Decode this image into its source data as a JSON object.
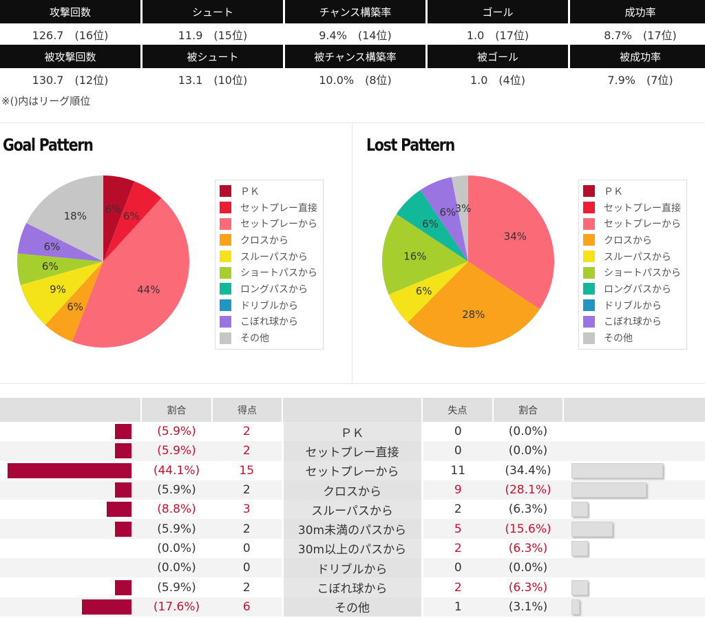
{
  "stats": {
    "rows": [
      {
        "headers": [
          "攻撃回数",
          "シュート",
          "チャンス構築率",
          "ゴール",
          "成功率"
        ],
        "values": [
          "126.7　(16位)",
          "11.9　(15位)",
          "9.4%　(14位)",
          "1.0　(17位)",
          "8.7%　(17位)"
        ]
      },
      {
        "headers": [
          "被攻撃回数",
          "被シュート",
          "被チャンス構築率",
          "被ゴール",
          "被成功率"
        ],
        "values": [
          "130.7　(12位)",
          "13.1　(10位)",
          "10.0%　(8位)",
          "1.0　(4位)",
          "7.9%　(7位)"
        ]
      }
    ],
    "note": "※()内はリーグ順位"
  },
  "chart_data": [
    {
      "type": "pie",
      "title": "Goal Pattern",
      "labels": [
        "ＰＫ",
        "セットプレー直接",
        "セットプレーから",
        "クロスから",
        "スルーパスから",
        "ショートパスから",
        "ロングパスから",
        "ドリブルから",
        "こぼれ球から",
        "その他"
      ],
      "values": [
        5.9,
        5.9,
        44.1,
        5.9,
        8.8,
        5.9,
        0,
        0,
        5.9,
        17.6
      ],
      "slice_labels": [
        "6%",
        "6%",
        "44%",
        "6%",
        "9%",
        "6%",
        "",
        "",
        "6%",
        "18%"
      ],
      "colors": [
        "#b80d2a",
        "#ee1d36",
        "#fb6a77",
        "#fba21d",
        "#f5e31a",
        "#a6ce2c",
        "#12b89a",
        "#2196c4",
        "#9a74e0",
        "#c6c6c6"
      ],
      "legend": "right"
    },
    {
      "type": "pie",
      "title": "Lost Pattern",
      "labels": [
        "ＰＫ",
        "セットプレー直接",
        "セットプレーから",
        "クロスから",
        "スルーパスから",
        "ショートパスから",
        "ロングパスから",
        "ドリブルから",
        "こぼれ球から",
        "その他"
      ],
      "values": [
        0,
        0,
        34.4,
        28.1,
        6.3,
        15.6,
        6.3,
        0,
        6.3,
        3.1
      ],
      "slice_labels": [
        "",
        "",
        "34%",
        "28%",
        "6%",
        "16%",
        "6%",
        "",
        "6%",
        "3%"
      ],
      "colors": [
        "#b80d2a",
        "#ee1d36",
        "#fb6a77",
        "#fba21d",
        "#f5e31a",
        "#a6ce2c",
        "#12b89a",
        "#2196c4",
        "#9a74e0",
        "#c6c6c6"
      ],
      "legend": "right"
    },
    {
      "type": "table",
      "headers": [
        "",
        "割合",
        "得点",
        "",
        "失点",
        "割合",
        ""
      ],
      "rows": [
        {
          "category": "ＰＫ",
          "goals": 2,
          "goal_pct": "(5.9%)",
          "goal_red": true,
          "lost": 0,
          "lost_pct": "(0.0%)",
          "lost_red": false,
          "goal_val": 5.9,
          "lost_val": 0
        },
        {
          "category": "セットプレー直接",
          "goals": 2,
          "goal_pct": "(5.9%)",
          "goal_red": true,
          "lost": 0,
          "lost_pct": "(0.0%)",
          "lost_red": false,
          "goal_val": 5.9,
          "lost_val": 0
        },
        {
          "category": "セットプレーから",
          "goals": 15,
          "goal_pct": "(44.1%)",
          "goal_red": true,
          "lost": 11,
          "lost_pct": "(34.4%)",
          "lost_red": false,
          "goal_val": 44.1,
          "lost_val": 34.4
        },
        {
          "category": "クロスから",
          "goals": 2,
          "goal_pct": "(5.9%)",
          "goal_red": false,
          "lost": 9,
          "lost_pct": "(28.1%)",
          "lost_red": true,
          "goal_val": 5.9,
          "lost_val": 28.1
        },
        {
          "category": "スルーパスから",
          "goals": 3,
          "goal_pct": "(8.8%)",
          "goal_red": true,
          "lost": 2,
          "lost_pct": "(6.3%)",
          "lost_red": false,
          "goal_val": 8.8,
          "lost_val": 6.3
        },
        {
          "category": "30m未満のパスから",
          "goals": 2,
          "goal_pct": "(5.9%)",
          "goal_red": false,
          "lost": 5,
          "lost_pct": "(15.6%)",
          "lost_red": true,
          "goal_val": 5.9,
          "lost_val": 15.6
        },
        {
          "category": "30m以上のパスから",
          "goals": 0,
          "goal_pct": "(0.0%)",
          "goal_red": false,
          "lost": 2,
          "lost_pct": "(6.3%)",
          "lost_red": true,
          "goal_val": 0,
          "lost_val": 6.3
        },
        {
          "category": "ドリブルから",
          "goals": 0,
          "goal_pct": "(0.0%)",
          "goal_red": false,
          "lost": 0,
          "lost_pct": "(0.0%)",
          "lost_red": false,
          "goal_val": 0,
          "lost_val": 0
        },
        {
          "category": "こぼれ球から",
          "goals": 2,
          "goal_pct": "(5.9%)",
          "goal_red": false,
          "lost": 2,
          "lost_pct": "(6.3%)",
          "lost_red": true,
          "goal_val": 5.9,
          "lost_val": 6.3
        },
        {
          "category": "その他",
          "goals": 6,
          "goal_pct": "(17.6%)",
          "goal_red": true,
          "lost": 1,
          "lost_pct": "(3.1%)",
          "lost_red": false,
          "goal_val": 17.6,
          "lost_val": 3.1
        }
      ],
      "colors": {
        "goal_bar": "#a8063a",
        "lost_bar": "#dedede",
        "highlight": "#c8102e"
      }
    }
  ]
}
